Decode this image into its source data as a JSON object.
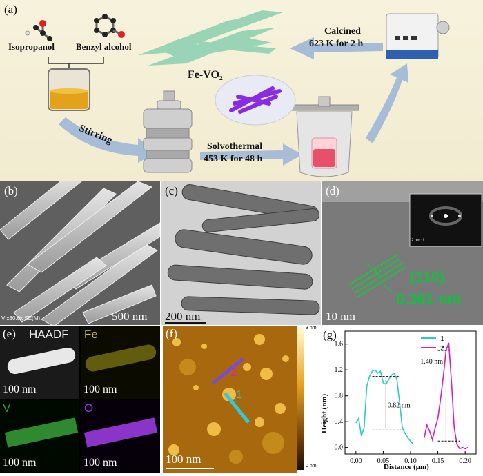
{
  "scheme": {
    "label": "(a)",
    "isopropanol": "Isopropanol",
    "benzyl_alcohol": "Benzyl alcohol",
    "product": "Fe-VO₂",
    "calcined_line1": "Calcined",
    "calcined_line2": "623 K for 2 h",
    "stirring": "Stirring",
    "solvothermal_line1": "Solvothermal",
    "solvothermal_line2": "453 K for 48 h"
  },
  "sem": {
    "label": "(b)",
    "scale": "500 nm",
    "meta": "V x80.0k SE(M)"
  },
  "tem": {
    "label": "(c)",
    "scale": "200 nm"
  },
  "hrtem": {
    "label": "(d)",
    "scale": "10 nm",
    "plane": "(110)",
    "spacing": "0.361 nm",
    "inset_scale": "2 nm⁻¹"
  },
  "eds": {
    "label": "(e)",
    "tiles": [
      {
        "name": "HAADF",
        "scale": "100 nm",
        "color": "#f0f0f0"
      },
      {
        "name": "Fe",
        "scale": "100 nm",
        "color": "#d8cf2a"
      },
      {
        "name": "V",
        "scale": "100 nm",
        "color": "#3a9a3a"
      },
      {
        "name": "O",
        "scale": "100 nm",
        "color": "#9b3ad8"
      }
    ]
  },
  "afm": {
    "label": "(f)",
    "scale": "100 nm",
    "colorbar_top": "3 nm",
    "colorbar_bottom": "0 nm",
    "line1": "1",
    "line2": "2"
  },
  "chart_data": {
    "type": "line",
    "label": "(g)",
    "xlabel": "Distance (μm)",
    "ylabel": "Height (nm)",
    "xlim": [
      -0.02,
      0.22
    ],
    "ylim": [
      -0.1,
      1.8
    ],
    "xticks": [
      "0.00",
      "0.05",
      "0.10",
      "0.15",
      "0.20"
    ],
    "yticks": [
      "0.0",
      "0.4",
      "0.8",
      "1.2",
      "1.6"
    ],
    "series": [
      {
        "name": "1",
        "color": "#2fc9c9",
        "x": [
          0.0,
          0.005,
          0.01,
          0.015,
          0.02,
          0.025,
          0.03,
          0.035,
          0.04,
          0.045,
          0.05,
          0.055,
          0.06,
          0.065,
          0.07,
          0.075,
          0.08,
          0.085,
          0.09,
          0.095,
          0.1,
          0.105
        ],
        "y": [
          0.38,
          0.45,
          0.18,
          0.3,
          0.95,
          1.1,
          1.18,
          1.2,
          1.15,
          1.18,
          1.0,
          0.98,
          1.05,
          1.12,
          1.15,
          1.05,
          0.7,
          0.3,
          0.22,
          0.15,
          0.1,
          0.05
        ]
      },
      {
        "name": "2",
        "color": "#d21fc8",
        "x": [
          0.125,
          0.13,
          0.135,
          0.14,
          0.145,
          0.15,
          0.155,
          0.16,
          0.165,
          0.17,
          0.175,
          0.18,
          0.185,
          0.19,
          0.195,
          0.2,
          0.205
        ],
        "y": [
          0.15,
          0.35,
          0.25,
          0.12,
          0.3,
          0.45,
          0.75,
          1.1,
          1.5,
          1.62,
          1.0,
          0.3,
          0.05,
          -0.02,
          0.0,
          -0.02,
          0.0
        ]
      }
    ],
    "annotations": [
      "0.82 nm",
      "1.40 nm"
    ]
  }
}
